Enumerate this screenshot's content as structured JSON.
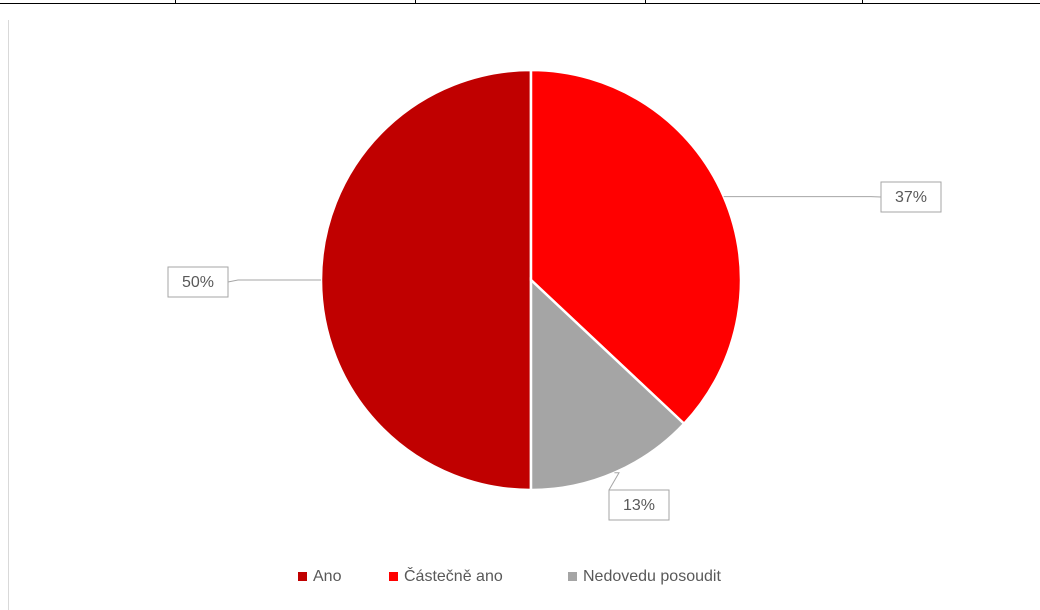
{
  "chart_data": {
    "type": "pie",
    "categories": [
      "Ano",
      "Částečně ano",
      "Nedovedu posoudit"
    ],
    "values": [
      50,
      37,
      13
    ],
    "value_labels": [
      "50%",
      "37%",
      "13%"
    ],
    "colors": [
      "#c00000",
      "#ff0000",
      "#a5a5a5"
    ],
    "legend": "bottom"
  }
}
